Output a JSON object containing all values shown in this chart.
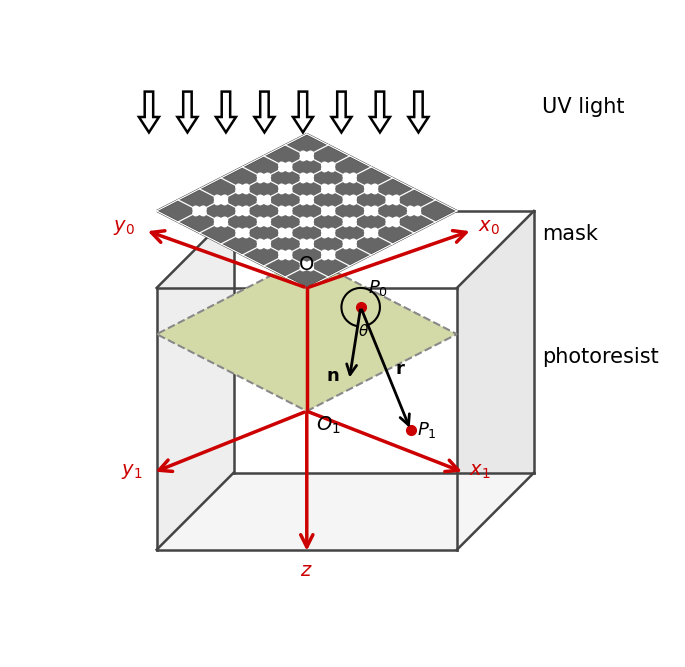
{
  "bg_color": "#ffffff",
  "mask_color": "#666666",
  "resist_color": "#d4d9a8",
  "box_face_color": "#f0f0f0",
  "box_edge_color": "#444444",
  "arrow_color": "#cc0000",
  "black": "#000000",
  "white": "#ffffff",
  "red_dot": "#cc0000",
  "uv_text": "UV light",
  "mask_text": "mask",
  "photoresist_text": "photoresist",
  "n_grid": 7,
  "cross_lw": 2.2,
  "cross_size": 5.5
}
